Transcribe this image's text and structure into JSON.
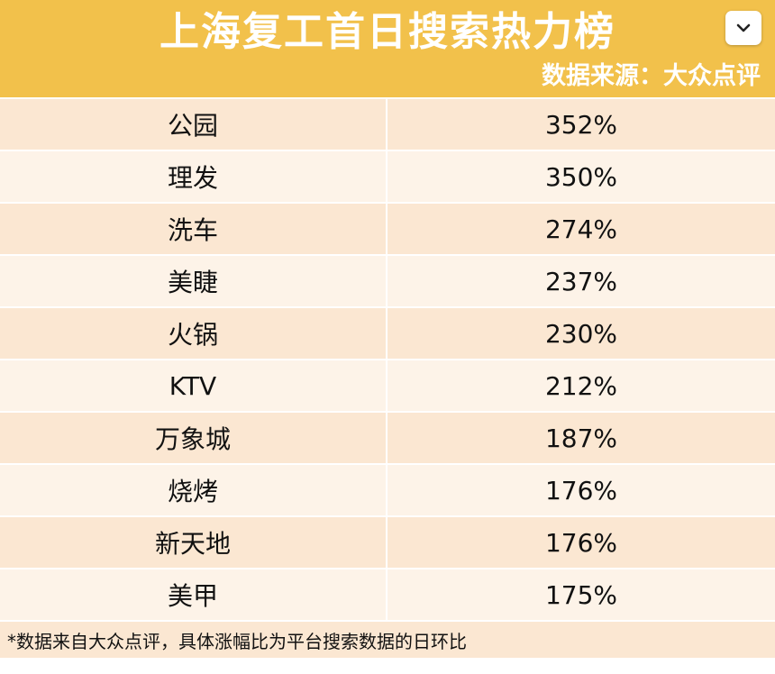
{
  "header": {
    "title": "上海复工首日搜索热力榜",
    "source": "数据来源：大众点评",
    "toggle_icon": "chevron-down-icon"
  },
  "colors": {
    "header_bg": "#f2c14b",
    "row_odd": "#fbe7d2",
    "row_even": "#fdf3e8"
  },
  "table": {
    "rows": [
      {
        "name": "公园",
        "value": "352%"
      },
      {
        "name": "理发",
        "value": "350%"
      },
      {
        "name": "洗车",
        "value": "274%"
      },
      {
        "name": "美睫",
        "value": "237%"
      },
      {
        "name": "火锅",
        "value": "230%"
      },
      {
        "name": "KTV",
        "value": "212%"
      },
      {
        "name": "万象城",
        "value": "187%"
      },
      {
        "name": "烧烤",
        "value": "176%"
      },
      {
        "name": "新天地",
        "value": "176%"
      },
      {
        "name": "美甲",
        "value": "175%"
      }
    ]
  },
  "footer": {
    "note": "*数据来自大众点评，具体涨幅比为平台搜索数据的日环比"
  }
}
